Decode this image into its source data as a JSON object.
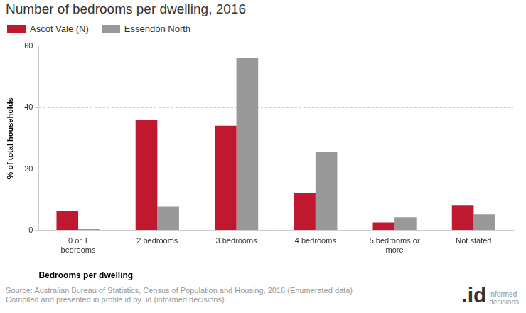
{
  "chart_data": {
    "type": "bar",
    "title": "Number of bedrooms per dwelling, 2016",
    "x_label": "Bedrooms per dwelling",
    "y_label": "% of total households",
    "categories": [
      "0 or 1 bedrooms",
      "2 bedrooms",
      "3 bedrooms",
      "4 bedrooms",
      "5 bedrooms or more",
      "Not stated"
    ],
    "series": [
      {
        "name": "Ascot Vale (N)",
        "color": "#c0182f",
        "values": [
          6.3,
          36.1,
          34.1,
          12.2,
          2.7,
          8.3
        ]
      },
      {
        "name": "Essendon North",
        "color": "#999999",
        "values": [
          0.5,
          7.8,
          56.1,
          25.6,
          4.4,
          5.3
        ]
      }
    ],
    "ylim": [
      0,
      60
    ],
    "yticks": [
      0,
      20,
      40,
      60
    ],
    "grid": true,
    "legend": "top left",
    "source": [
      "Source: Australian Bureau of Statistics, Census of Population and Housing, 2016 (Enumerated data)",
      "Compiled and presented in profile.id by .id (informed decisions)."
    ],
    "logo": [
      ".id",
      "informed",
      "decisions"
    ]
  }
}
